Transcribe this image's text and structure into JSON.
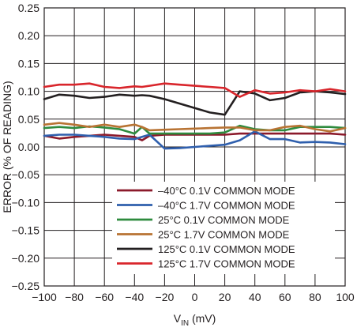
{
  "chart_data": {
    "type": "line",
    "title": "",
    "xlabel": "V",
    "xlabel_sub": "IN",
    "xlabel_unit": " (mV)",
    "ylabel": "ERROR (% OF READING)",
    "xlim": [
      -100,
      100
    ],
    "ylim": [
      -0.25,
      0.25
    ],
    "x_ticks": [
      "−100",
      "−80",
      "−60",
      "−40",
      "−20",
      "0",
      "20",
      "40",
      "60",
      "80",
      "100"
    ],
    "x_tick_values": [
      -100,
      -80,
      -60,
      -40,
      -20,
      0,
      20,
      40,
      60,
      80,
      100
    ],
    "y_ticks": [
      "−0.25",
      "−0.20",
      "−0.15",
      "−0.10",
      "−0.05",
      "0.00",
      "0.05",
      "0.10",
      "0.15",
      "0.20",
      "0.25"
    ],
    "y_tick_values": [
      -0.25,
      -0.2,
      -0.15,
      -0.1,
      -0.05,
      0,
      0.05,
      0.1,
      0.15,
      0.2,
      0.25
    ],
    "grid": true,
    "legend_position": "bottom-right",
    "x": [
      -100,
      -90,
      -80,
      -70,
      -60,
      -50,
      -40,
      -35,
      -30,
      -20,
      -10,
      0,
      10,
      20,
      30,
      40,
      50,
      60,
      70,
      80,
      90,
      100
    ],
    "series": [
      {
        "name": "–40°C 0.1V COMMON MODE",
        "color": "#8b1a2b",
        "values": [
          0.02,
          0.015,
          0.018,
          0.02,
          0.022,
          0.02,
          0.018,
          0.012,
          0.02,
          0.022,
          0.022,
          0.022,
          0.022,
          0.022,
          0.024,
          0.024,
          0.024,
          0.024,
          0.024,
          0.024,
          0.024,
          0.022
        ]
      },
      {
        "name": "–40°C 1.7V COMMON MODE",
        "color": "#2f5fad",
        "values": [
          0.02,
          0.022,
          0.022,
          0.02,
          0.018,
          0.015,
          0.014,
          0.018,
          0.022,
          -0.003,
          -0.002,
          0.0,
          0.002,
          0.004,
          0.012,
          0.028,
          0.014,
          0.014,
          0.008,
          0.009,
          0.008,
          0.005
        ]
      },
      {
        "name": "25°C 0.1V COMMON MODE",
        "color": "#2e8b3e",
        "values": [
          0.034,
          0.036,
          0.034,
          0.037,
          0.035,
          0.032,
          0.024,
          0.036,
          0.024,
          0.024,
          0.024,
          0.024,
          0.024,
          0.026,
          0.038,
          0.032,
          0.03,
          0.03,
          0.036,
          0.036,
          0.036,
          0.034
        ]
      },
      {
        "name": "25°C 1.7V COMMON MODE",
        "color": "#b87333",
        "values": [
          0.04,
          0.043,
          0.04,
          0.036,
          0.04,
          0.036,
          0.04,
          0.036,
          0.03,
          0.031,
          0.032,
          0.033,
          0.034,
          0.035,
          0.035,
          0.03,
          0.03,
          0.036,
          0.038,
          0.032,
          0.028,
          0.034
        ]
      },
      {
        "name": "125°C 0.1V COMMON MODE",
        "color": "#231f20",
        "values": [
          0.086,
          0.094,
          0.092,
          0.088,
          0.09,
          0.094,
          0.092,
          0.093,
          0.092,
          0.086,
          0.078,
          0.07,
          0.062,
          0.058,
          0.1,
          0.096,
          0.084,
          0.088,
          0.098,
          0.1,
          0.098,
          0.095
        ]
      },
      {
        "name": "125°C 1.7V COMMON MODE",
        "color": "#d9262c",
        "values": [
          0.108,
          0.112,
          0.112,
          0.114,
          0.108,
          0.106,
          0.109,
          0.108,
          0.11,
          0.114,
          0.112,
          0.11,
          0.108,
          0.106,
          0.09,
          0.102,
          0.096,
          0.098,
          0.102,
          0.1,
          0.104,
          0.1
        ]
      }
    ]
  }
}
